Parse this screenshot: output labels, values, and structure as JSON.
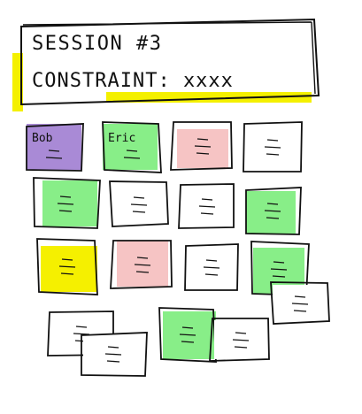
{
  "header": {
    "session_label": "SESSION #3",
    "constraint_label": "CONSTRAINT: xxxx",
    "highlight_color": "#f4f000"
  },
  "colors": {
    "ink": "#111111",
    "purple": "#a98ad6",
    "green": "#88ee88",
    "pink": "#f6c4c4",
    "yellow": "#f5f000",
    "white": "#ffffff"
  },
  "notes": [
    {
      "id": "bob",
      "color": "purple",
      "label": "Bob"
    },
    {
      "id": "eric",
      "color": "green",
      "label": "Eric"
    },
    {
      "id": "r1c3",
      "color": "pink",
      "label": ""
    },
    {
      "id": "r1c4",
      "color": "white",
      "label": ""
    },
    {
      "id": "r2c1",
      "color": "green",
      "label": ""
    },
    {
      "id": "r2c2",
      "color": "white",
      "label": ""
    },
    {
      "id": "r2c3",
      "color": "white",
      "label": ""
    },
    {
      "id": "r2c4",
      "color": "green",
      "label": ""
    },
    {
      "id": "r3c1",
      "color": "yellow",
      "label": ""
    },
    {
      "id": "r3c2",
      "color": "pink",
      "label": ""
    },
    {
      "id": "r3c3",
      "color": "white",
      "label": ""
    },
    {
      "id": "r3c4",
      "color": "green",
      "label": ""
    },
    {
      "id": "r3c5",
      "color": "white",
      "label": ""
    },
    {
      "id": "r4c1",
      "color": "white",
      "label": ""
    },
    {
      "id": "r4c2",
      "color": "white",
      "label": ""
    },
    {
      "id": "r4c3",
      "color": "green",
      "label": ""
    },
    {
      "id": "r4c4",
      "color": "white",
      "label": ""
    }
  ]
}
